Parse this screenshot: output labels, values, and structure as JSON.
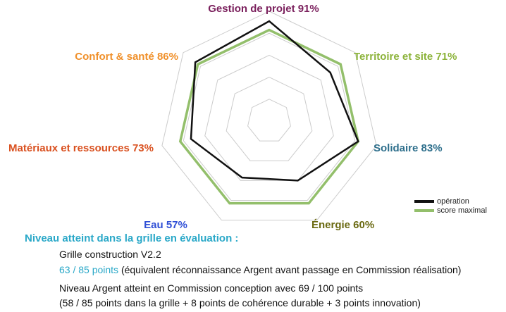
{
  "chart_data": {
    "type": "radar",
    "title": "",
    "categories": [
      {
        "label": "Gestion de projet 91%",
        "color": "#7a1f5c"
      },
      {
        "label": "Territoire et site 71%",
        "color": "#8cb33a"
      },
      {
        "label": "Solidaire 83%",
        "color": "#2e6f8c"
      },
      {
        "label": "Énergie 60%",
        "color": "#6b6a12"
      },
      {
        "label": "Eau 57%",
        "color": "#2f4fd6"
      },
      {
        "label": "Matériaux et ressources 73%",
        "color": "#d9501f"
      },
      {
        "label": "Confort & santé 86%",
        "color": "#f0902a"
      }
    ],
    "series": [
      {
        "name": "opération",
        "color": "#111111",
        "values": [
          91,
          71,
          83,
          60,
          57,
          73,
          86
        ]
      },
      {
        "name": "score maximal",
        "color": "#93bf6b",
        "values": [
          100,
          100,
          100,
          100,
          100,
          100,
          100
        ]
      }
    ],
    "scale_max": 100,
    "grid_levels": 5,
    "legend_position": "bottom-right"
  },
  "caption": {
    "title": "Niveau atteint dans la grille en évaluation :",
    "title_color": "#2aa8c8",
    "line1": "Grille construction V2.2",
    "line2_highlight": "63 / 85 points",
    "line2_rest": " (équivalent réconnaissance Argent avant passage en Commission réalisation)",
    "line3_a": "Niveau Argent",
    "line3_b": " atteint en ",
    "line3_c": "Commission conception",
    "line3_d": " avec ",
    "line3_e": "69 / 100 points",
    "line4": "(58 / 85 points dans la grille + 8 points de cohérence durable + 3 points innovation)"
  }
}
